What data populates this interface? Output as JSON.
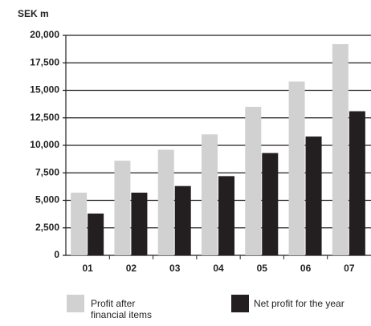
{
  "chart_data": {
    "type": "bar",
    "y_label": "SEK m",
    "categories": [
      "01",
      "02",
      "03",
      "04",
      "05",
      "06",
      "07"
    ],
    "series": [
      {
        "name": "Profit after financial items",
        "color": "#d1d1d1",
        "values": [
          5700,
          8600,
          9600,
          11000,
          13500,
          15800,
          19200
        ]
      },
      {
        "name": "Net profit for the year",
        "color": "#231f20",
        "values": [
          3800,
          5700,
          6300,
          7200,
          9300,
          10800,
          13100
        ]
      }
    ],
    "ylim": [
      0,
      20000
    ],
    "yticks": [
      0,
      {
        "value": 2500,
        "label": "2,500"
      },
      {
        "value": 5000,
        "label": "5,000"
      },
      {
        "value": 7500,
        "label": "7,500"
      },
      {
        "value": 10000,
        "label": "10,000"
      },
      {
        "value": 12500,
        "label": "12,500"
      },
      {
        "value": 15000,
        "label": "15,000"
      },
      {
        "value": 17500,
        "label": "17,500"
      },
      {
        "value": 20000,
        "label": "20,000"
      }
    ],
    "grid": true
  }
}
